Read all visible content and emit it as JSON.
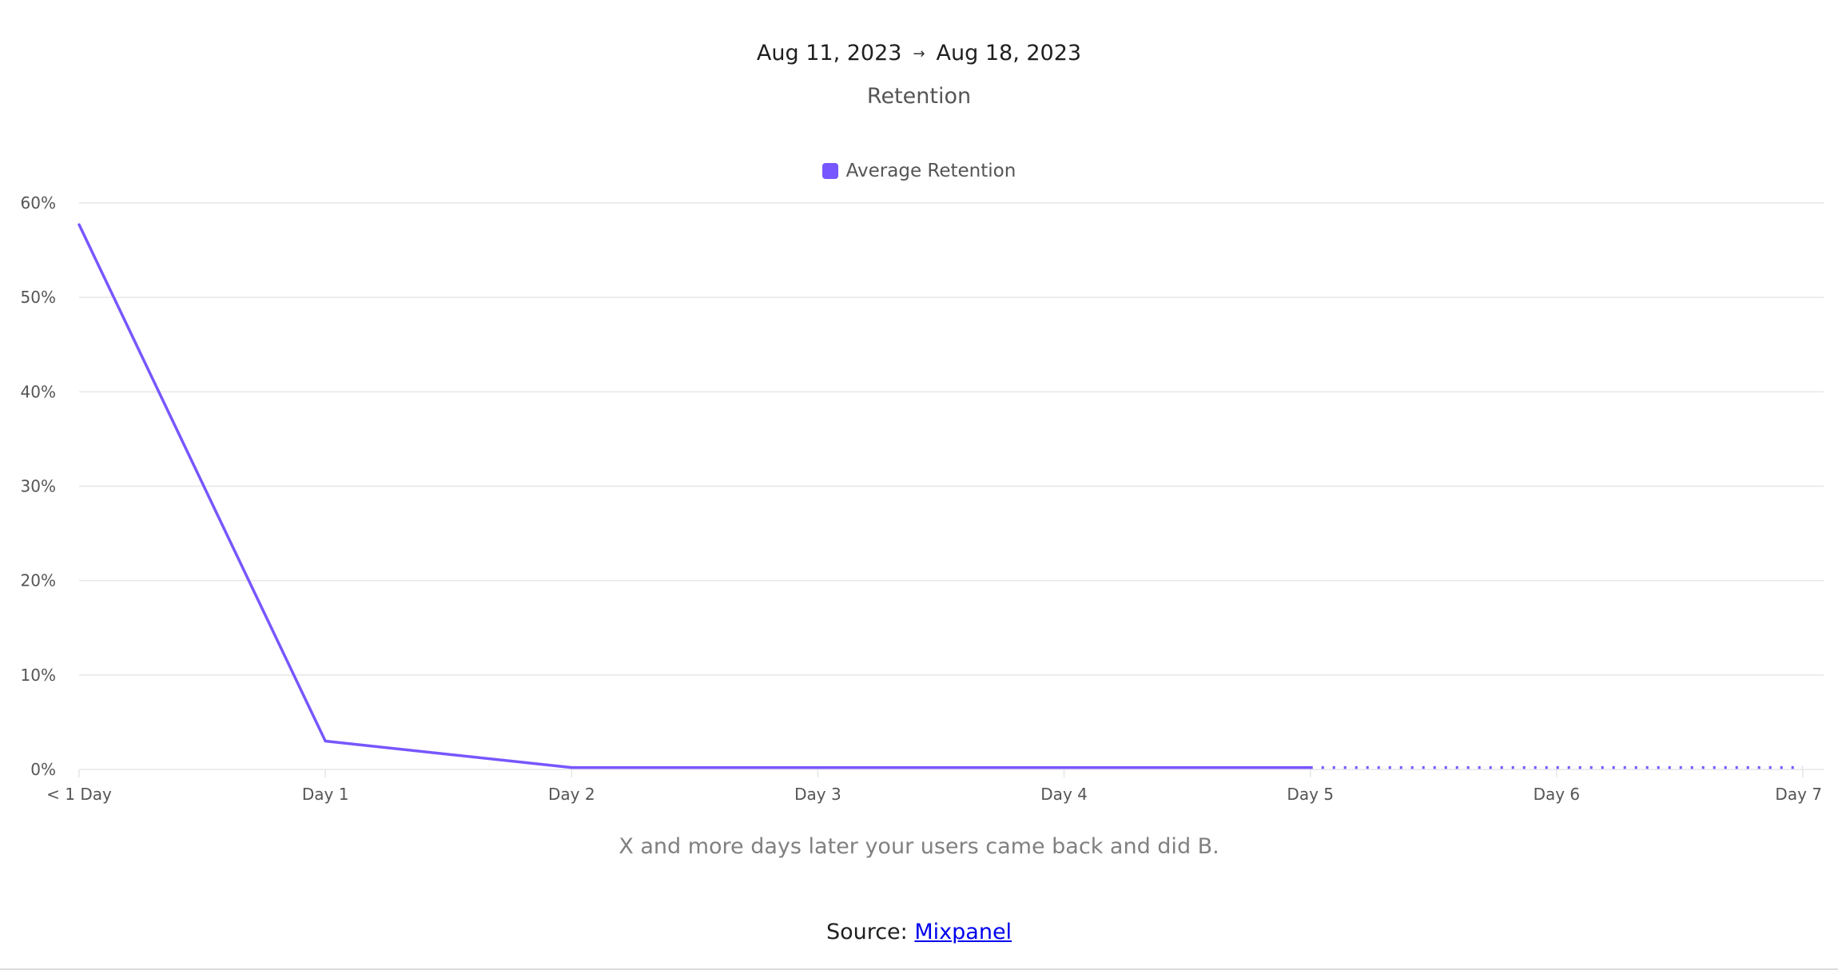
{
  "header": {
    "date_start": "Aug 11, 2023",
    "date_arrow": "→",
    "date_end": "Aug 18, 2023",
    "title": "Retention"
  },
  "caption": "X and more days later your users came back and did B.",
  "source": {
    "label": "Source:",
    "link_text": "Mixpanel"
  },
  "colors": {
    "series": "#7856ff",
    "grid": "#e6e6e6",
    "axis_text": "#555555"
  },
  "chart_data": {
    "type": "line",
    "categories": [
      "< 1 Day",
      "Day 1",
      "Day 2",
      "Day 3",
      "Day 4",
      "Day 5",
      "Day 6",
      "Day 7"
    ],
    "series": [
      {
        "name": "Average Retention",
        "values": [
          57.7,
          3.0,
          0.2,
          0.2,
          0.2,
          0.2,
          0.2,
          0.2
        ],
        "solid_through_category": "Day 5",
        "dotted_after": "Day 5"
      }
    ],
    "ylim": [
      0,
      60
    ],
    "yticks": [
      "0%",
      "10%",
      "20%",
      "30%",
      "40%",
      "50%",
      "60%"
    ],
    "ytick_values": [
      0,
      10,
      20,
      30,
      40,
      50,
      60
    ],
    "legend_position": "top-center",
    "grid": true
  }
}
